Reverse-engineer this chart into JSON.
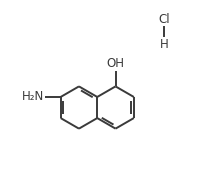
{
  "bg_color": "#ffffff",
  "line_color": "#3a3a3a",
  "line_width": 1.4,
  "font_size": 8.5,
  "oh_label": "OH",
  "nh2_label": "H₂N",
  "hcl_cl": "Cl",
  "hcl_h": "H",
  "figsize": [
    2.06,
    1.92
  ],
  "dpi": 100,
  "ox": 0.47,
  "oy": 0.44,
  "bl": 0.11
}
